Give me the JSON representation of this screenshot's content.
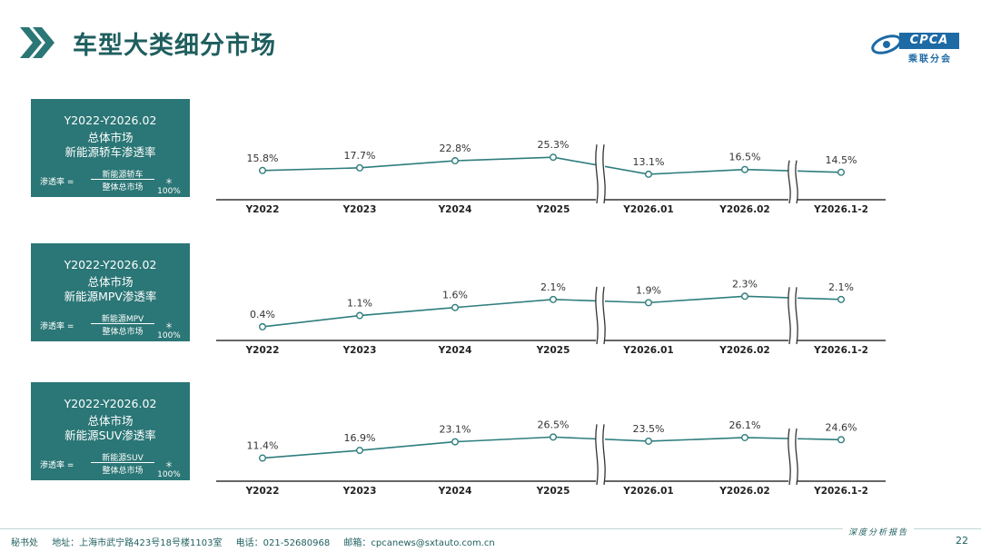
{
  "title": "车型大类细分市场",
  "logo": {
    "text": "CPCA",
    "sub": "乘联分会"
  },
  "colors": {
    "teal": "#2b7676",
    "line": "#2f7d7d",
    "axis": "#333333"
  },
  "formula": {
    "lhs": "渗透率 =",
    "mul": "＊100%"
  },
  "chart_data": [
    {
      "type": "line",
      "panel": {
        "line1": "Y2022-Y2026.02",
        "line2": "总体市场",
        "line3": "新能源轿车渗透率",
        "numerator": "新能源轿车",
        "denominator": "整体总市场"
      },
      "categories": [
        "Y2022",
        "Y2023",
        "Y2024",
        "Y2025",
        "Y2026.01",
        "Y2026.02",
        "Y2026.1-2"
      ],
      "values": [
        15.8,
        17.7,
        22.8,
        25.3,
        13.1,
        16.5,
        14.5
      ],
      "labels": [
        "15.8%",
        "17.7%",
        "22.8%",
        "25.3%",
        "13.1%",
        "16.5%",
        "14.5%"
      ],
      "ylim": [
        0,
        30
      ]
    },
    {
      "type": "line",
      "panel": {
        "line1": "Y2022-Y2026.02",
        "line2": "总体市场",
        "line3": "新能源MPV渗透率",
        "numerator": "新能源MPV",
        "denominator": "整体总市场"
      },
      "categories": [
        "Y2022",
        "Y2023",
        "Y2024",
        "Y2025",
        "Y2026.01",
        "Y2026.02",
        "Y2026.1-2"
      ],
      "values": [
        0.4,
        1.1,
        1.6,
        2.1,
        1.9,
        2.3,
        2.1
      ],
      "labels": [
        "0.4%",
        "1.1%",
        "1.6%",
        "2.1%",
        "1.9%",
        "2.3%",
        "2.1%"
      ],
      "ylim": [
        0,
        2.6
      ]
    },
    {
      "type": "line",
      "panel": {
        "line1": "Y2022-Y2026.02",
        "line2": "总体市场",
        "line3": "新能源SUV渗透率",
        "numerator": "新能源SUV",
        "denominator": "整体总市场"
      },
      "categories": [
        "Y2022",
        "Y2023",
        "Y2024",
        "Y2025",
        "Y2026.01",
        "Y2026.02",
        "Y2026.1-2"
      ],
      "values": [
        11.4,
        16.9,
        23.1,
        26.5,
        23.5,
        26.1,
        24.6
      ],
      "labels": [
        "11.4%",
        "16.9%",
        "23.1%",
        "26.5%",
        "23.5%",
        "26.1%",
        "24.6%"
      ],
      "ylim": [
        0,
        30
      ]
    }
  ],
  "footer": {
    "office": "秘书处",
    "address": "地址：上海市武宁路423号18号楼1103室",
    "phone": "电话：021-52680968",
    "email": "邮箱：cpcanews@sxtauto.com.cn",
    "report": "深度分析报告",
    "page": "22"
  }
}
